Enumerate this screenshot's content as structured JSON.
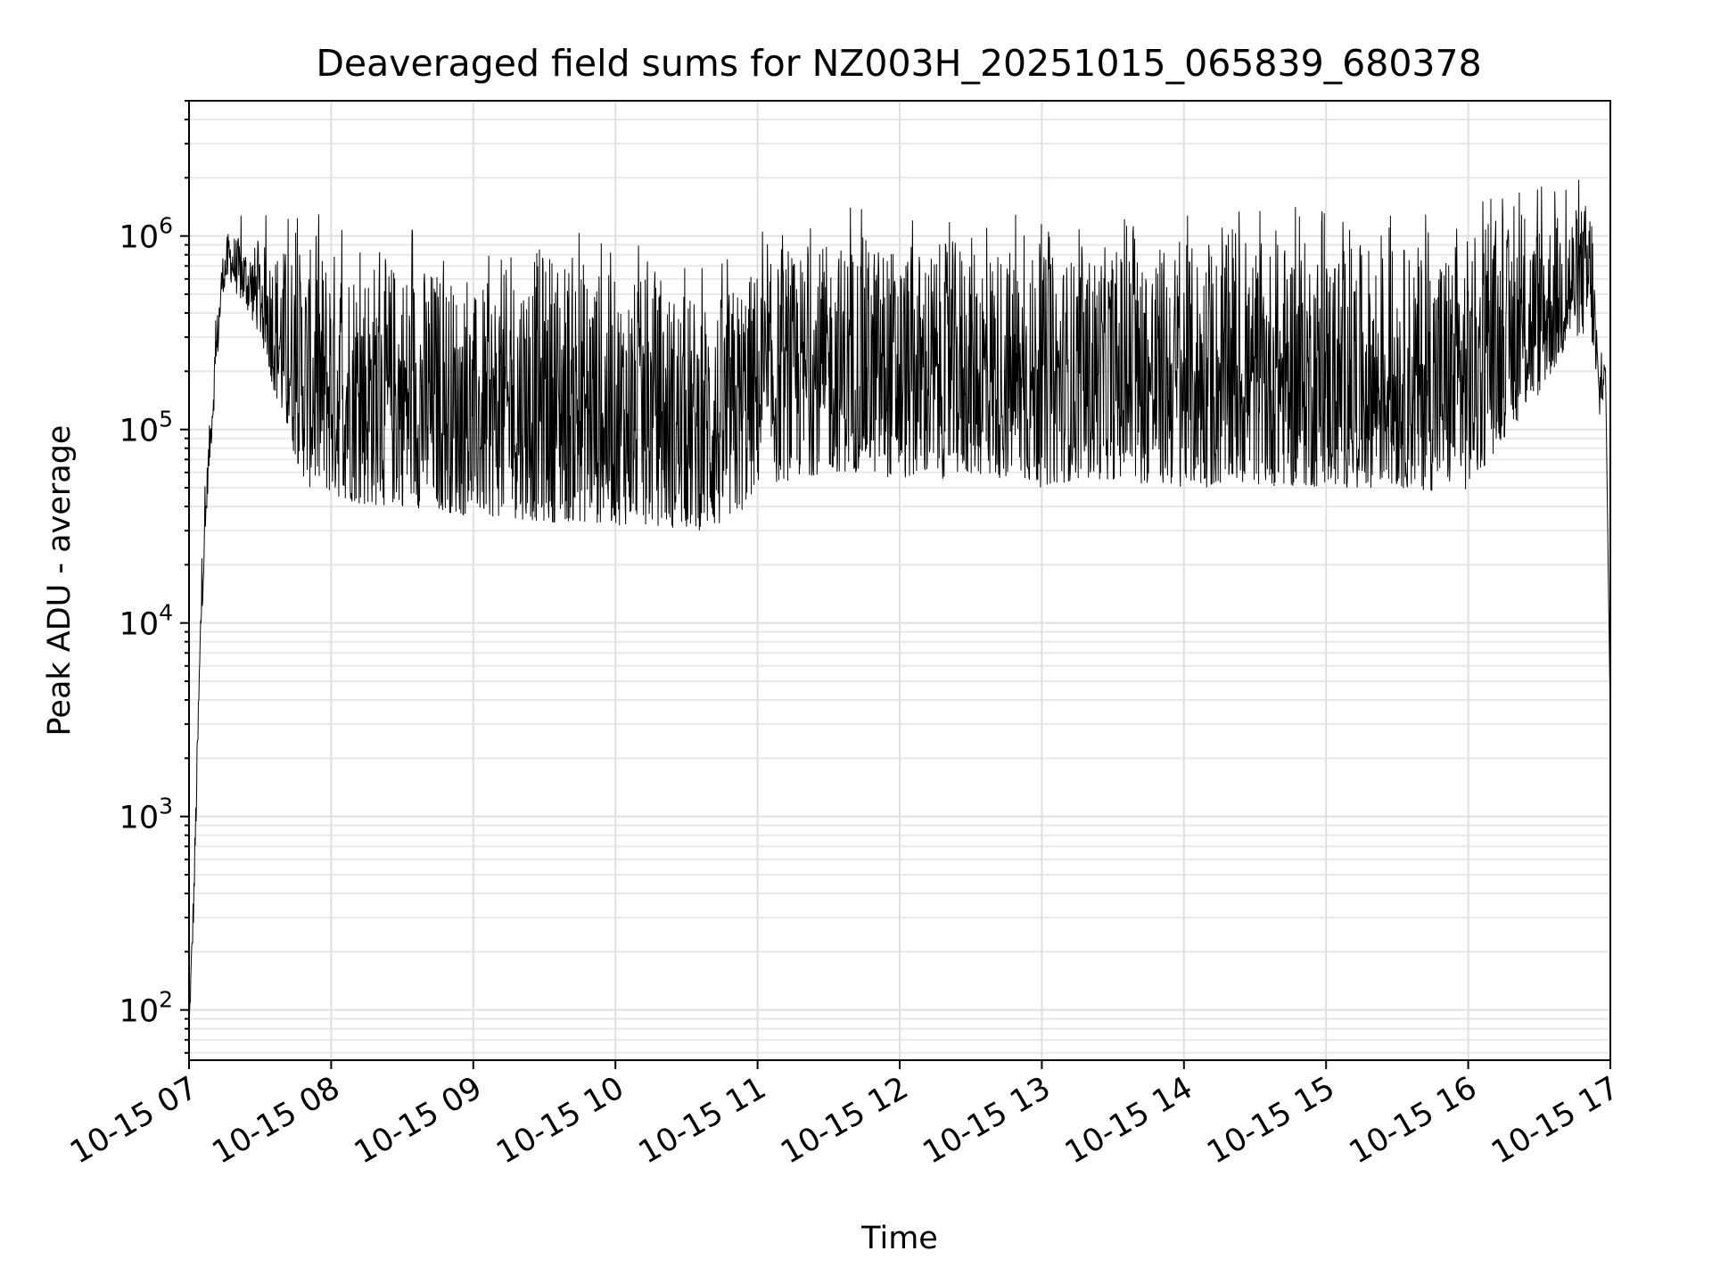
{
  "chart_data": {
    "type": "line",
    "title": "Deaveraged field sums for NZ003H_20251015_065839_680378",
    "xlabel": "Time",
    "ylabel": "Peak ADU - average",
    "yscale": "log",
    "grid": true,
    "ylim": [
      55,
      5000000
    ],
    "xlim": [
      "2025-10-15 07:00",
      "2025-10-15 17:00"
    ],
    "x_ticks": [
      "10-15 07",
      "10-15 08",
      "10-15 09",
      "10-15 10",
      "10-15 11",
      "10-15 12",
      "10-15 13",
      "10-15 14",
      "10-15 15",
      "10-15 16",
      "10-15 17"
    ],
    "y_ticks": [
      {
        "value": 100,
        "base": "10",
        "exp": "2"
      },
      {
        "value": 1000,
        "base": "10",
        "exp": "3"
      },
      {
        "value": 10000,
        "base": "10",
        "exp": "4"
      },
      {
        "value": 100000,
        "base": "10",
        "exp": "5"
      },
      {
        "value": 1000000,
        "base": "10",
        "exp": "6"
      }
    ],
    "series": [
      {
        "color": "#000000",
        "description_of_envelope": "noisy signal, sampled at coarse resolution from the plot",
        "x": [
          "07:00",
          "07:02",
          "07:05",
          "07:08",
          "07:11",
          "07:14",
          "07:17",
          "07:20",
          "07:25",
          "07:30",
          "07:40",
          "07:50",
          "08:00",
          "08:15",
          "08:30",
          "08:45",
          "09:00",
          "09:15",
          "09:30",
          "09:45",
          "10:00",
          "10:15",
          "10:30",
          "10:45",
          "10:52",
          "11:00",
          "11:15",
          "11:30",
          "11:45",
          "12:00",
          "12:15",
          "12:30",
          "12:45",
          "13:00",
          "13:15",
          "13:30",
          "13:45",
          "14:00",
          "14:15",
          "14:30",
          "14:45",
          "15:00",
          "15:15",
          "15:30",
          "15:45",
          "16:00",
          "16:15",
          "16:30",
          "16:45",
          "16:52",
          "16:55",
          "16:58",
          "17:00"
        ],
        "upper": [
          90,
          500,
          15000,
          80000,
          300000,
          800000,
          1100000,
          1000000,
          900000,
          900000,
          900000,
          850000,
          900000,
          800000,
          750000,
          700000,
          500000,
          700000,
          900000,
          800000,
          600000,
          600000,
          500000,
          500000,
          600000,
          700000,
          800000,
          900000,
          1000000,
          900000,
          900000,
          1000000,
          900000,
          800000,
          800000,
          900000,
          900000,
          900000,
          900000,
          900000,
          1000000,
          900000,
          900000,
          900000,
          900000,
          1000000,
          1100000,
          1200000,
          1400000,
          1600000,
          250000,
          220000,
          3000
        ],
        "lower": [
          70,
          300,
          8000,
          50000,
          150000,
          500000,
          600000,
          500000,
          400000,
          300000,
          100000,
          50000,
          45000,
          40000,
          40000,
          38000,
          35000,
          35000,
          33000,
          33000,
          32000,
          32000,
          30000,
          30000,
          35000,
          50000,
          55000,
          60000,
          60000,
          55000,
          55000,
          58000,
          55000,
          50000,
          55000,
          55000,
          52000,
          50000,
          50000,
          52000,
          50000,
          50000,
          50000,
          50000,
          48000,
          48000,
          90000,
          150000,
          300000,
          300000,
          100000,
          180000,
          3000
        ]
      }
    ]
  }
}
